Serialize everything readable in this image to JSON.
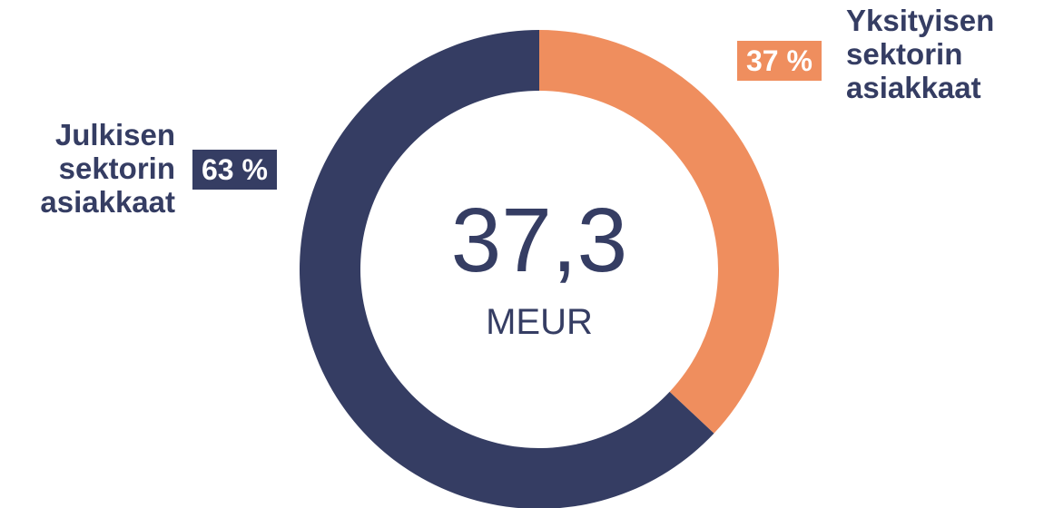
{
  "chart_data": {
    "type": "donut",
    "categories": [
      "Yksityisen sektorin asiakkaat",
      "Julkisen sektorin asiakkaat"
    ],
    "values": [
      37,
      63
    ],
    "value_labels": [
      "37 %",
      "63 %"
    ],
    "colors": [
      "#ef8e5e",
      "#353d63"
    ],
    "center_value": "37,3",
    "center_unit": "MEUR"
  }
}
